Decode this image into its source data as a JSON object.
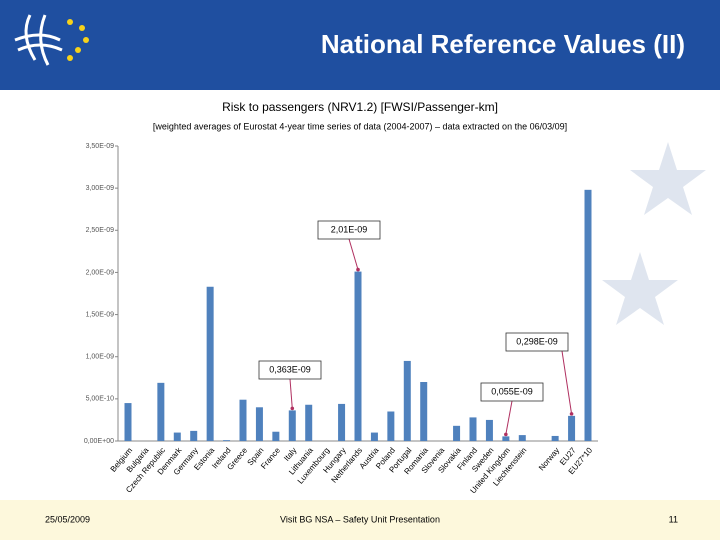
{
  "header": {
    "title": "National Reference Values (II)"
  },
  "footer": {
    "date": "25/05/2009",
    "center": "Visit BG NSA – Safety Unit Presentation",
    "page": "11"
  },
  "chart_data": {
    "type": "bar",
    "title": "Risk to passengers (NRV1.2) [FWSI/Passenger-km]",
    "subtitle": "[weighted averages of Eurostat 4-year time series of data (2004-2007) – data extracted on the 06/03/09]",
    "categories": [
      "Belgium",
      "Bulgaria",
      "Czech Republic",
      "Denmark",
      "Germany",
      "Estonia",
      "Ireland",
      "Greece",
      "Spain",
      "France",
      "Italy",
      "Lithuania",
      "Luxembourg",
      "Hungary",
      "Netherlands",
      "Austria",
      "Poland",
      "Portugal",
      "Romania",
      "Slovenia",
      "Slovakia",
      "Finland",
      "Sweden",
      "United Kingdom",
      "Liechtenstein",
      null,
      "Norway",
      "EU27",
      "EU27*10"
    ],
    "values": [
      4.5e-10,
      0,
      6.9e-10,
      1e-10,
      1.2e-10,
      1.83e-09,
      1e-11,
      4.9e-10,
      4e-10,
      1.1e-10,
      3.63e-10,
      4.3e-10,
      0,
      4.4e-10,
      2.01e-09,
      1e-10,
      3.5e-10,
      9.5e-10,
      7e-10,
      0,
      1.8e-10,
      2.8e-10,
      2.5e-10,
      5.5e-11,
      7e-11,
      0,
      6e-11,
      2.98e-10,
      2.98e-09
    ],
    "value_labels": [
      null,
      null,
      null,
      null,
      null,
      null,
      null,
      null,
      null,
      null,
      "0,363E-09",
      null,
      null,
      null,
      "2,01E-09",
      null,
      null,
      null,
      null,
      null,
      null,
      null,
      null,
      "0,055E-09",
      null,
      null,
      null,
      "0,298E-09",
      null
    ],
    "color": "#4f81bd",
    "ylim": [
      0,
      3.5e-09
    ],
    "yticks": [
      {
        "value": 0,
        "label": "0,00E+00"
      },
      {
        "value": 5e-10,
        "label": "5,00E-10"
      },
      {
        "value": 1e-09,
        "label": "1,00E-09"
      },
      {
        "value": 1.5e-09,
        "label": "1,50E-09"
      },
      {
        "value": 2e-09,
        "label": "2,00E-09"
      },
      {
        "value": 2.5e-09,
        "label": "2,50E-09"
      },
      {
        "value": 3e-09,
        "label": "3,00E-09"
      },
      {
        "value": 3.5e-09,
        "label": "3,50E-09"
      }
    ],
    "grid": false
  }
}
